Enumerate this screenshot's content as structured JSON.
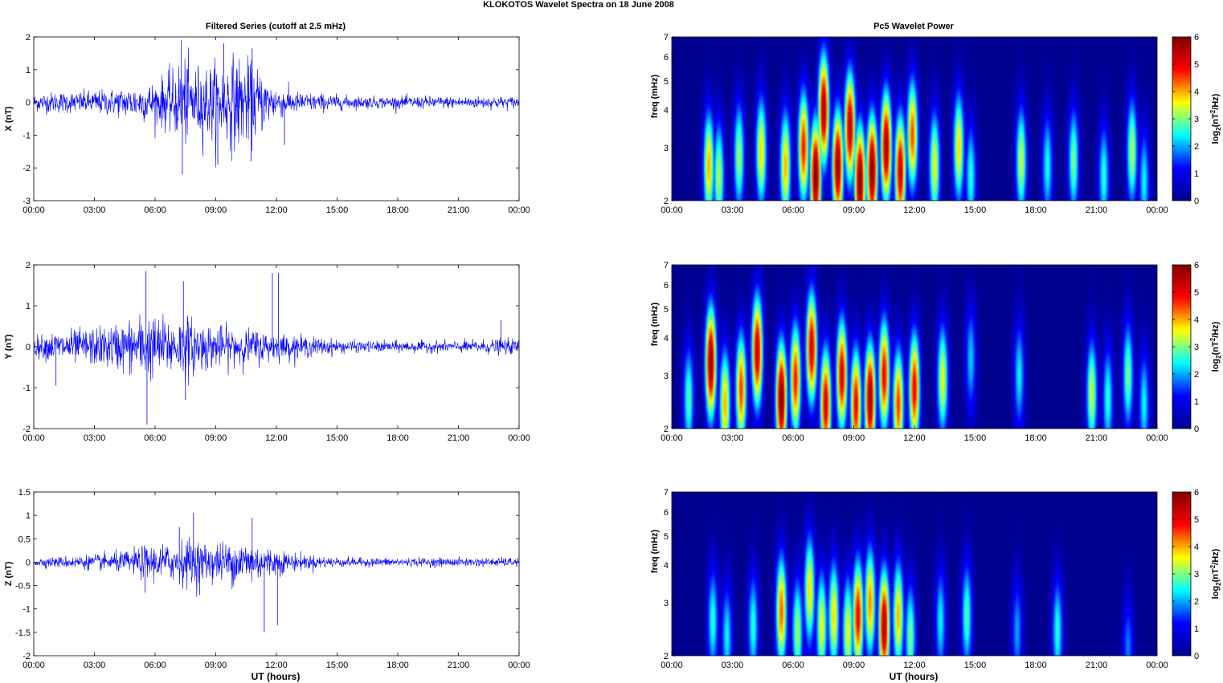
{
  "figure": {
    "title": "KLOKOTOS Wavelet Spectra on 18 June      2008",
    "left_title": "Filtered Series (cutoff at 2.5 mHz)",
    "right_title": "Pc5 Wavelet Power",
    "xlabel": "UT (hours)"
  },
  "colors": {
    "trace": "#0000ff",
    "colormap": [
      "#00008f",
      "#0000ff",
      "#00ffff",
      "#ffff00",
      "#ff0000",
      "#800000"
    ]
  },
  "chart_data": [
    {
      "type": "line",
      "component": "X",
      "ylabel": "X (nT)",
      "xlim_hours": [
        0,
        24
      ],
      "x_ticks": [
        "00:00",
        "03:00",
        "06:00",
        "09:00",
        "12:00",
        "15:00",
        "18:00",
        "21:00",
        "00:00"
      ],
      "ylim": [
        -3,
        2
      ],
      "y_ticks": [
        -3,
        -2,
        -1,
        0,
        1,
        2
      ],
      "series": [
        {
          "x_hours": [
            0,
            1,
            2,
            3,
            4,
            5,
            6,
            6.5,
            7,
            7.3,
            7.5,
            8,
            8.5,
            9,
            9.5,
            10,
            10.5,
            11,
            11.5,
            12,
            13,
            14,
            15,
            16,
            17,
            18,
            19,
            20,
            21,
            22,
            23,
            24
          ],
          "amplitude": [
            0.3,
            0.35,
            0.35,
            0.4,
            0.45,
            0.55,
            0.7,
            0.9,
            1.1,
            1.6,
            1.4,
            1.2,
            1.3,
            1.3,
            1.4,
            1.6,
            1.4,
            1.2,
            0.8,
            0.55,
            0.35,
            0.3,
            0.25,
            0.2,
            0.2,
            0.2,
            0.2,
            0.2,
            0.2,
            0.2,
            0.2,
            0.2
          ]
        }
      ],
      "peaks": [
        {
          "x_hours": 7.3,
          "value": 1.9
        },
        {
          "x_hours": 7.35,
          "value": -2.2
        },
        {
          "x_hours": 9.4,
          "value": 1.8
        },
        {
          "x_hours": 9.1,
          "value": -1.9
        },
        {
          "x_hours": 10.8,
          "value": 1.65
        },
        {
          "x_hours": 10.75,
          "value": -1.8
        },
        {
          "x_hours": 12.4,
          "value": -1.3
        }
      ]
    },
    {
      "type": "line",
      "component": "Y",
      "ylabel": "Y (nT)",
      "xlim_hours": [
        0,
        24
      ],
      "x_ticks": [
        "00:00",
        "03:00",
        "06:00",
        "09:00",
        "12:00",
        "15:00",
        "18:00",
        "21:00",
        "00:00"
      ],
      "ylim": [
        -2,
        2
      ],
      "y_ticks": [
        -2,
        -1,
        0,
        1,
        2
      ],
      "series": [
        {
          "x_hours": [
            0,
            1,
            2,
            3,
            4,
            5,
            5.5,
            6,
            7,
            7.5,
            8,
            9,
            10,
            11,
            11.5,
            12,
            13,
            14,
            15,
            16,
            17,
            18,
            19,
            20,
            21,
            22,
            23,
            24
          ],
          "amplitude": [
            0.25,
            0.4,
            0.45,
            0.5,
            0.6,
            0.75,
            0.9,
            0.8,
            0.75,
            0.85,
            0.7,
            0.55,
            0.5,
            0.45,
            0.4,
            0.35,
            0.3,
            0.25,
            0.18,
            0.15,
            0.15,
            0.15,
            0.15,
            0.15,
            0.15,
            0.18,
            0.2,
            0.2
          ]
        }
      ],
      "peaks": [
        {
          "x_hours": 5.55,
          "value": 1.85
        },
        {
          "x_hours": 5.6,
          "value": -1.9
        },
        {
          "x_hours": 7.4,
          "value": 1.6
        },
        {
          "x_hours": 7.5,
          "value": -1.3
        },
        {
          "x_hours": 11.8,
          "value": 1.8
        },
        {
          "x_hours": 12.1,
          "value": 1.8
        },
        {
          "x_hours": 1.1,
          "value": -0.95
        },
        {
          "x_hours": 23.1,
          "value": 0.65
        }
      ]
    },
    {
      "type": "line",
      "component": "Z",
      "ylabel": "Z (nT)",
      "xlim_hours": [
        0,
        24
      ],
      "x_ticks": [
        "00:00",
        "03:00",
        "06:00",
        "09:00",
        "12:00",
        "15:00",
        "18:00",
        "21:00",
        "00:00"
      ],
      "ylim": [
        -2,
        1.5
      ],
      "y_ticks": [
        -2,
        -1.5,
        -1,
        -0.5,
        0,
        0.5,
        1,
        1.5
      ],
      "series": [
        {
          "x_hours": [
            0,
            1,
            2,
            3,
            4,
            5,
            5.5,
            6,
            7,
            7.5,
            8,
            9,
            10,
            10.5,
            11,
            12,
            13,
            14,
            15,
            16,
            17,
            18,
            19,
            20,
            21,
            22,
            23,
            24
          ],
          "amplitude": [
            0.1,
            0.12,
            0.15,
            0.18,
            0.22,
            0.3,
            0.4,
            0.4,
            0.45,
            0.55,
            0.5,
            0.45,
            0.5,
            0.55,
            0.45,
            0.3,
            0.2,
            0.15,
            0.12,
            0.1,
            0.1,
            0.1,
            0.1,
            0.1,
            0.1,
            0.1,
            0.1,
            0.1
          ]
        }
      ],
      "peaks": [
        {
          "x_hours": 7.9,
          "value": 1.05
        },
        {
          "x_hours": 10.8,
          "value": 0.95
        },
        {
          "x_hours": 11.4,
          "value": -1.5
        },
        {
          "x_hours": 12.05,
          "value": -1.35
        },
        {
          "x_hours": 7.2,
          "value": 0.75
        },
        {
          "x_hours": 8.2,
          "value": -0.7
        },
        {
          "x_hours": 5.5,
          "value": -0.65
        }
      ]
    },
    {
      "type": "heatmap",
      "component": "X",
      "title": "Pc5 Wavelet Power",
      "ylabel": "freq (mHz)",
      "y_scale": "log",
      "ylim_mhz": [
        2,
        7
      ],
      "y_ticks": [
        2,
        3,
        4,
        5,
        6,
        7
      ],
      "xlim_hours": [
        0,
        24
      ],
      "x_ticks": [
        "00:00",
        "03:00",
        "06:00",
        "09:00",
        "12:00",
        "15:00",
        "18:00",
        "21:00",
        "00:00"
      ],
      "colorbar": {
        "label": "log2(nT2/Hz)",
        "label_main": "log",
        "label_sub": "2",
        "label_paren": "(nT",
        "label_sup": "2",
        "label_tail": "/Hz)",
        "range": [
          0,
          6
        ],
        "ticks": [
          0,
          1,
          2,
          3,
          4,
          5,
          6
        ]
      },
      "power_peaks": [
        {
          "t": 1.8,
          "f": 2.6,
          "power": 4.0
        },
        {
          "t": 2.3,
          "f": 2.4,
          "power": 3.3
        },
        {
          "t": 3.3,
          "f": 2.8,
          "power": 3.2
        },
        {
          "t": 4.4,
          "f": 2.9,
          "power": 3.8
        },
        {
          "t": 5.6,
          "f": 2.6,
          "power": 4.0
        },
        {
          "t": 6.5,
          "f": 3.0,
          "power": 4.8
        },
        {
          "t": 7.1,
          "f": 2.4,
          "power": 6.0
        },
        {
          "t": 7.5,
          "f": 4.0,
          "power": 5.6
        },
        {
          "t": 8.2,
          "f": 2.6,
          "power": 5.8
        },
        {
          "t": 8.8,
          "f": 3.5,
          "power": 5.5
        },
        {
          "t": 9.3,
          "f": 2.3,
          "power": 6.0
        },
        {
          "t": 9.9,
          "f": 2.5,
          "power": 6.0
        },
        {
          "t": 10.6,
          "f": 3.0,
          "power": 5.7
        },
        {
          "t": 11.3,
          "f": 2.5,
          "power": 5.4
        },
        {
          "t": 11.9,
          "f": 3.3,
          "power": 4.5
        },
        {
          "t": 13.0,
          "f": 2.6,
          "power": 3.6
        },
        {
          "t": 14.2,
          "f": 3.0,
          "power": 3.8
        },
        {
          "t": 14.8,
          "f": 2.4,
          "power": 2.6
        },
        {
          "t": 17.3,
          "f": 2.7,
          "power": 3.4
        },
        {
          "t": 18.6,
          "f": 2.6,
          "power": 2.5
        },
        {
          "t": 19.9,
          "f": 2.7,
          "power": 3.0
        },
        {
          "t": 21.4,
          "f": 2.4,
          "power": 2.6
        },
        {
          "t": 22.8,
          "f": 2.9,
          "power": 3.3
        },
        {
          "t": 23.4,
          "f": 2.3,
          "power": 2.4
        }
      ]
    },
    {
      "type": "heatmap",
      "component": "Y",
      "ylabel": "freq (mHz)",
      "y_scale": "log",
      "ylim_mhz": [
        2,
        7
      ],
      "y_ticks": [
        2,
        3,
        4,
        5,
        6,
        7
      ],
      "xlim_hours": [
        0,
        24
      ],
      "x_ticks": [
        "00:00",
        "03:00",
        "06:00",
        "09:00",
        "12:00",
        "15:00",
        "18:00",
        "21:00",
        "00:00"
      ],
      "colorbar": {
        "label": "log2(nT2/Hz)",
        "label_main": "log",
        "label_sub": "2",
        "label_paren": "(nT",
        "label_sup": "2",
        "label_tail": "/Hz)",
        "range": [
          0,
          6
        ],
        "ticks": [
          0,
          1,
          2,
          3,
          4,
          5,
          6
        ]
      },
      "power_peaks": [
        {
          "t": 0.8,
          "f": 2.5,
          "power": 2.8
        },
        {
          "t": 1.9,
          "f": 3.3,
          "power": 5.8
        },
        {
          "t": 2.6,
          "f": 2.4,
          "power": 4.0
        },
        {
          "t": 3.4,
          "f": 2.7,
          "power": 4.6
        },
        {
          "t": 4.2,
          "f": 3.6,
          "power": 5.4
        },
        {
          "t": 5.4,
          "f": 2.5,
          "power": 6.0
        },
        {
          "t": 6.1,
          "f": 2.9,
          "power": 4.8
        },
        {
          "t": 6.9,
          "f": 3.7,
          "power": 5.3
        },
        {
          "t": 7.6,
          "f": 2.4,
          "power": 5.2
        },
        {
          "t": 8.4,
          "f": 3.0,
          "power": 5.2
        },
        {
          "t": 9.1,
          "f": 2.4,
          "power": 5.0
        },
        {
          "t": 9.8,
          "f": 2.5,
          "power": 5.8
        },
        {
          "t": 10.5,
          "f": 3.0,
          "power": 5.0
        },
        {
          "t": 11.2,
          "f": 2.4,
          "power": 4.6
        },
        {
          "t": 12.0,
          "f": 2.7,
          "power": 5.0
        },
        {
          "t": 13.4,
          "f": 2.9,
          "power": 3.6
        },
        {
          "t": 14.8,
          "f": 3.4,
          "power": 2.2
        },
        {
          "t": 17.2,
          "f": 3.0,
          "power": 2.4
        },
        {
          "t": 20.8,
          "f": 2.6,
          "power": 3.4
        },
        {
          "t": 21.6,
          "f": 2.5,
          "power": 2.6
        },
        {
          "t": 22.6,
          "f": 3.0,
          "power": 3.0
        },
        {
          "t": 23.4,
          "f": 2.4,
          "power": 2.4
        }
      ]
    },
    {
      "type": "heatmap",
      "component": "Z",
      "ylabel": "freq (mHz)",
      "y_scale": "log",
      "ylim_mhz": [
        2,
        7
      ],
      "y_ticks": [
        2,
        3,
        4,
        5,
        6,
        7
      ],
      "xlim_hours": [
        0,
        24
      ],
      "x_ticks": [
        "00:00",
        "03:00",
        "06:00",
        "09:00",
        "12:00",
        "15:00",
        "18:00",
        "21:00",
        "00:00"
      ],
      "colorbar": {
        "label": "log2(nT2/Hz)",
        "label_main": "log",
        "label_sub": "2",
        "label_paren": "(nT",
        "label_sup": "2",
        "label_tail": "/Hz)",
        "range": [
          0,
          6
        ],
        "ticks": [
          0,
          1,
          2,
          3,
          4,
          5,
          6
        ]
      },
      "power_peaks": [
        {
          "t": 2.0,
          "f": 2.6,
          "power": 2.6
        },
        {
          "t": 2.7,
          "f": 2.3,
          "power": 2.4
        },
        {
          "t": 4.0,
          "f": 2.5,
          "power": 2.6
        },
        {
          "t": 5.4,
          "f": 2.8,
          "power": 4.4
        },
        {
          "t": 6.2,
          "f": 2.4,
          "power": 3.2
        },
        {
          "t": 6.8,
          "f": 3.3,
          "power": 3.8
        },
        {
          "t": 7.4,
          "f": 2.5,
          "power": 3.6
        },
        {
          "t": 8.0,
          "f": 2.7,
          "power": 3.8
        },
        {
          "t": 8.7,
          "f": 2.4,
          "power": 3.6
        },
        {
          "t": 9.2,
          "f": 2.7,
          "power": 5.0
        },
        {
          "t": 9.8,
          "f": 3.0,
          "power": 4.2
        },
        {
          "t": 10.5,
          "f": 2.5,
          "power": 5.6
        },
        {
          "t": 11.2,
          "f": 2.7,
          "power": 4.0
        },
        {
          "t": 11.8,
          "f": 2.3,
          "power": 3.0
        },
        {
          "t": 13.3,
          "f": 2.6,
          "power": 2.4
        },
        {
          "t": 14.6,
          "f": 2.7,
          "power": 2.8
        },
        {
          "t": 17.1,
          "f": 2.4,
          "power": 2.0
        },
        {
          "t": 19.1,
          "f": 2.4,
          "power": 2.6
        },
        {
          "t": 22.6,
          "f": 2.1,
          "power": 1.8
        }
      ]
    }
  ]
}
